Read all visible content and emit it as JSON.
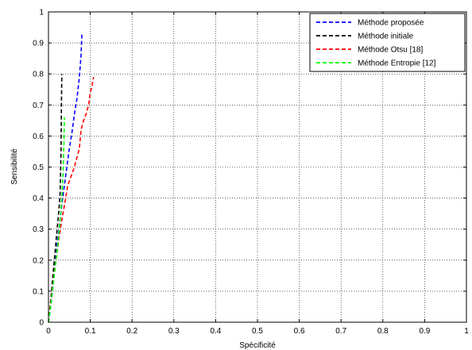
{
  "chart_data": {
    "type": "line",
    "xlabel": "Spécificité",
    "ylabel": "Sensibilité",
    "xlim": [
      0,
      1
    ],
    "ylim": [
      0,
      1
    ],
    "grid": true,
    "grid_style": "dotted",
    "legend_position": "top-right",
    "xticks": [
      "0",
      "0.1",
      "0.2",
      "0.3",
      "0.4",
      "0.5",
      "0.6",
      "0.7",
      "0.8",
      "0.9",
      "1"
    ],
    "yticks": [
      "0",
      "0.1",
      "0.2",
      "0.3",
      "0.4",
      "0.5",
      "0.6",
      "0.7",
      "0.8",
      "0.9",
      "1"
    ],
    "series": [
      {
        "name": "Méthode proposée",
        "color": "#0000ff",
        "x": [
          0.0,
          0.008,
          0.014,
          0.02,
          0.026,
          0.032,
          0.038,
          0.044,
          0.05,
          0.056,
          0.062,
          0.068,
          0.074,
          0.078,
          0.08
        ],
        "y": [
          0.0,
          0.08,
          0.16,
          0.24,
          0.31,
          0.38,
          0.44,
          0.5,
          0.56,
          0.61,
          0.67,
          0.72,
          0.79,
          0.86,
          0.93
        ]
      },
      {
        "name": "Méthode initiale",
        "color": "#000000",
        "x": [
          0.0,
          0.006,
          0.012,
          0.018,
          0.022,
          0.026,
          0.028,
          0.03,
          0.031,
          0.032
        ],
        "y": [
          0.0,
          0.08,
          0.17,
          0.26,
          0.32,
          0.38,
          0.42,
          0.55,
          0.7,
          0.8
        ]
      },
      {
        "name": "Méthode Otsu [18]",
        "color": "#ff0000",
        "x": [
          0.0,
          0.008,
          0.016,
          0.024,
          0.032,
          0.04,
          0.046,
          0.054,
          0.062,
          0.068,
          0.074,
          0.078,
          0.084,
          0.09,
          0.096,
          0.1,
          0.104,
          0.108
        ],
        "y": [
          0.0,
          0.09,
          0.18,
          0.26,
          0.33,
          0.39,
          0.44,
          0.47,
          0.5,
          0.53,
          0.56,
          0.62,
          0.65,
          0.67,
          0.7,
          0.74,
          0.76,
          0.79
        ]
      },
      {
        "name": "Méthode Entropie [12]",
        "color": "#00ff00",
        "x": [
          0.0,
          0.006,
          0.012,
          0.018,
          0.024,
          0.028,
          0.032,
          0.035,
          0.037,
          0.038
        ],
        "y": [
          0.0,
          0.06,
          0.13,
          0.2,
          0.27,
          0.33,
          0.4,
          0.48,
          0.58,
          0.66
        ]
      }
    ]
  }
}
